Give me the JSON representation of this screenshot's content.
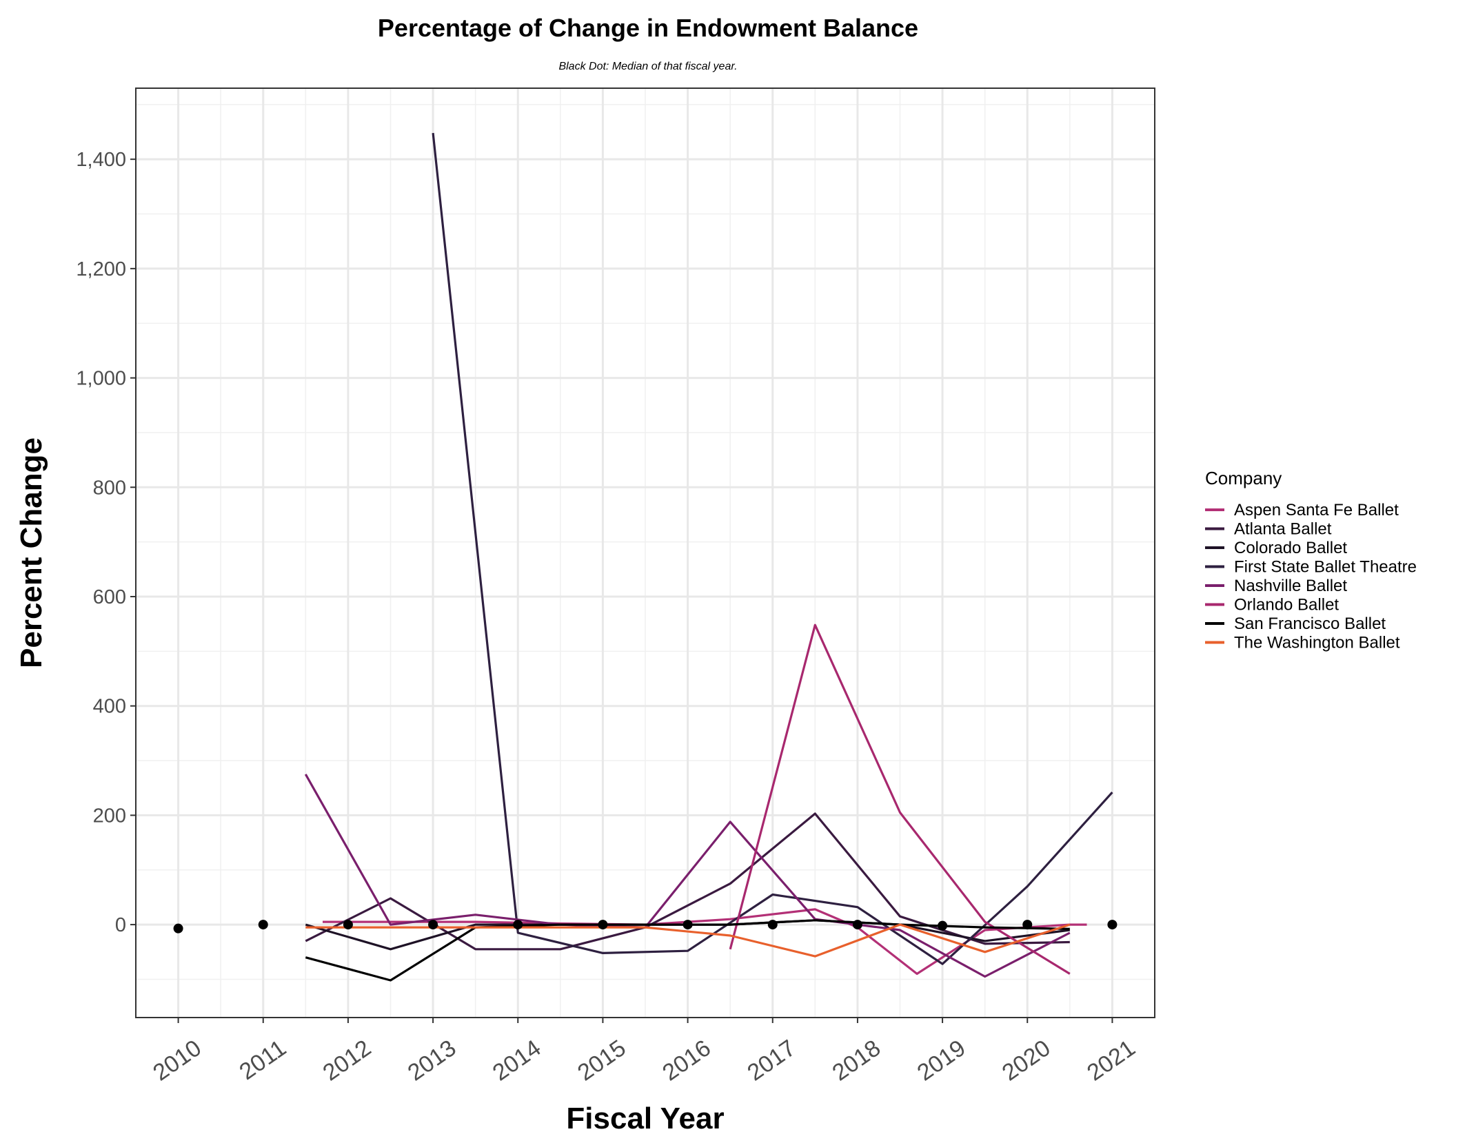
{
  "chart_data": {
    "type": "line",
    "title": "Percentage of Change in Endowment Balance",
    "subtitle": "Black Dot: Median of that fiscal year.",
    "xlabel": "Fiscal Year",
    "ylabel": "Percent Change",
    "x_ticks": [
      2010,
      2011,
      2012,
      2013,
      2014,
      2015,
      2016,
      2017,
      2018,
      2019,
      2020,
      2021
    ],
    "xlim": [
      2009.5,
      2021.5
    ],
    "y_ticks": [
      0,
      200,
      400,
      600,
      800,
      1000,
      1200,
      1400
    ],
    "y_tick_labels": [
      "0",
      "200",
      "400",
      "600",
      "800",
      "1,000",
      "1,200",
      "1,400"
    ],
    "ylim": [
      -170,
      1530
    ],
    "grid": true,
    "legend_title": "Company",
    "legend_position": "right",
    "series": [
      {
        "name": "Aspen Santa Fe Ballet",
        "color": "#b33076",
        "x": [
          2011.7,
          2012.5,
          2013.5,
          2014.5,
          2015.5,
          2016.5,
          2017.5,
          2018.0,
          2018.7,
          2019.5,
          2020.5,
          2020.7
        ],
        "y": [
          5,
          5,
          5,
          2,
          0,
          10,
          28,
          -5,
          -90,
          -10,
          0,
          0
        ]
      },
      {
        "name": "Atlanta Ballet",
        "color": "#3a1a40",
        "x": [
          2011.5,
          2012.5,
          2013.5,
          2014.5,
          2015.5,
          2016.5,
          2017.5,
          2018.5,
          2019.5,
          2020.5
        ],
        "y": [
          -30,
          48,
          -45,
          -45,
          -5,
          75,
          203,
          15,
          -35,
          -32
        ]
      },
      {
        "name": "Colorado Ballet",
        "color": "#1e1226",
        "x": [
          2011.5,
          2012.5,
          2013.5,
          2014.5,
          2015.5,
          2016.5,
          2017.5,
          2018.5,
          2019.5,
          2020.5
        ],
        "y": [
          0,
          -45,
          0,
          0,
          0,
          0,
          8,
          0,
          -30,
          -10
        ]
      },
      {
        "name": "First State Ballet Theatre",
        "color": "#2e2040",
        "x": [
          2013.0,
          2014.0,
          2015.0,
          2016.0,
          2017.0,
          2018.0,
          2019.0,
          2020.0,
          2021.0
        ],
        "y": [
          1448,
          -15,
          -52,
          -48,
          55,
          32,
          -72,
          70,
          242
        ]
      },
      {
        "name": "Nashville Ballet",
        "color": "#7a1f6c",
        "x": [
          2011.5,
          2012.5,
          2013.5,
          2014.5,
          2015.5,
          2016.5,
          2017.5,
          2018.5,
          2019.5,
          2020.5
        ],
        "y": [
          275,
          0,
          18,
          0,
          -5,
          188,
          10,
          -10,
          -95,
          -15
        ]
      },
      {
        "name": "Orlando Ballet",
        "color": "#a8286e",
        "x": [
          2016.5,
          2017.5,
          2018.5,
          2019.5,
          2020.5
        ],
        "y": [
          -45,
          548,
          205,
          5,
          -90
        ]
      },
      {
        "name": "San Francisco Ballet",
        "color": "#000000",
        "x": [
          2011.5,
          2012.5,
          2013.5,
          2014.5,
          2015.5,
          2016.5,
          2017.5,
          2018.5,
          2019.5,
          2020.5
        ],
        "y": [
          -60,
          -102,
          -5,
          0,
          0,
          0,
          8,
          0,
          -5,
          -8
        ]
      },
      {
        "name": "The Washington Ballet",
        "color": "#e8602c",
        "x": [
          2011.5,
          2012.5,
          2013.5,
          2014.5,
          2015.5,
          2016.5,
          2017.5,
          2018.5,
          2019.5,
          2020.5
        ],
        "y": [
          -5,
          -5,
          -5,
          -5,
          -5,
          -20,
          -58,
          0,
          -50,
          0
        ]
      }
    ],
    "median_points": {
      "color": "#000000",
      "x": [
        2010,
        2011,
        2012,
        2013,
        2014,
        2015,
        2016,
        2017,
        2018,
        2019,
        2020,
        2021
      ],
      "y": [
        -7,
        0,
        0,
        0,
        0,
        0,
        0,
        0,
        0,
        -2,
        0,
        0
      ]
    }
  }
}
